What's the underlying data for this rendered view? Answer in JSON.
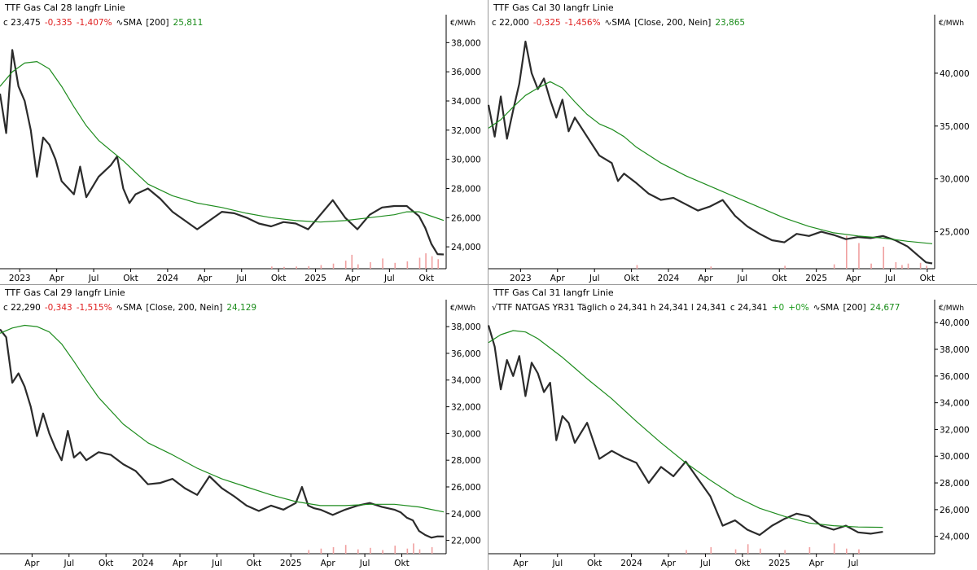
{
  "panels": [
    {
      "title": "TTF Gas Cal 28 langfr Linie",
      "legend": {
        "prefix": "",
        "close": "c 23,475",
        "change": "-0,335",
        "change_pct": "-1,407%",
        "sma_label": "SMA",
        "sma_params": "[200]",
        "sma_value": "25,811"
      },
      "unit": "€/MWh"
    },
    {
      "title": "TTF Gas Cal 30 langfr Linie",
      "legend": {
        "prefix": "",
        "close": "c 22,000",
        "change": "-0,325",
        "change_pct": "-1,456%",
        "sma_label": "SMA",
        "sma_params": "[Close, 200, Nein]",
        "sma_value": "23,865"
      },
      "unit": "€/MWh"
    },
    {
      "title": "TTF Gas Cal 29 langfr Linie",
      "legend": {
        "prefix": "",
        "close": "c 22,290",
        "change": "-0,343",
        "change_pct": "-1,515%",
        "sma_label": "SMA",
        "sma_params": "[Close, 200, Nein]",
        "sma_value": "24,129"
      },
      "unit": "€/MWh"
    },
    {
      "title": "TTF Gas Cal 31 langfr Linie",
      "legend": {
        "prefix": "TTF NATGAS YR31 Täglich o 24,341 h 24,341 l 24,341",
        "close": "c 24,341",
        "change": "+0",
        "change_pct": "+0%",
        "sma_label": "SMA",
        "sma_params": "[200]",
        "sma_value": "24,677"
      },
      "unit": "€/MWh"
    }
  ],
  "colors": {
    "price": "#2b2b2b",
    "sma": "#1e8c1e",
    "volume": "#f0a0a0",
    "negative": "#e02020",
    "positive": "#1a9a1a",
    "divider": "#9a9a9a"
  },
  "chart_data": [
    {
      "type": "line",
      "title": "TTF Gas Cal 28 langfr Linie",
      "ylabel": "€/MWh",
      "ylim": [
        22500,
        38800
      ],
      "xlim": [
        0,
        36.2
      ],
      "yticks": [
        24000,
        26000,
        28000,
        30000,
        32000,
        34000,
        36000,
        38000
      ],
      "ytick_labels": [
        "24,000",
        "26,000",
        "28,000",
        "30,000",
        "32,000",
        "34,000",
        "36,000",
        "38,000"
      ],
      "xticks": [
        {
          "label": "2023",
          "x": 1.6
        },
        {
          "label": "Apr",
          "x": 4.6
        },
        {
          "label": "Jul",
          "x": 7.6
        },
        {
          "label": "Okt",
          "x": 10.6
        },
        {
          "label": "2024",
          "x": 13.6
        },
        {
          "label": "Apr",
          "x": 16.6
        },
        {
          "label": "Jul",
          "x": 19.6
        },
        {
          "label": "Okt",
          "x": 22.6
        },
        {
          "label": "2025",
          "x": 25.6
        },
        {
          "label": "Apr",
          "x": 28.6
        },
        {
          "label": "Jul",
          "x": 31.6
        },
        {
          "label": "Okt",
          "x": 34.6
        }
      ],
      "series": [
        {
          "name": "Close",
          "x": [
            0,
            0.5,
            1,
            1.5,
            2,
            2.5,
            3,
            3.5,
            4,
            4.5,
            5,
            6,
            6.5,
            7,
            8,
            9,
            9.5,
            10,
            10.5,
            11,
            12,
            13,
            14,
            15,
            16,
            17,
            18,
            19,
            20,
            21,
            22,
            23,
            24,
            25,
            26,
            27,
            28,
            29,
            30,
            31,
            32,
            33,
            34,
            34.5,
            35,
            35.5,
            36
          ],
          "y": [
            34500,
            31800,
            37500,
            35000,
            34000,
            32000,
            28800,
            31500,
            31000,
            30000,
            28500,
            27600,
            29500,
            27400,
            28800,
            29600,
            30200,
            28000,
            27000,
            27600,
            28000,
            27300,
            26400,
            25800,
            25200,
            25800,
            26400,
            26300,
            26000,
            25600,
            25400,
            25700,
            25600,
            25200,
            26200,
            27200,
            26000,
            25200,
            26200,
            26700,
            26800,
            26800,
            26100,
            25300,
            24200,
            23500,
            23475
          ]
        },
        {
          "name": "SMA",
          "x": [
            0,
            1,
            2,
            3,
            4,
            5,
            6,
            7,
            8,
            9,
            10,
            11,
            12,
            14,
            16,
            18,
            20,
            22,
            24,
            26,
            28,
            30,
            32,
            33,
            34,
            35,
            36
          ],
          "y": [
            35000,
            36000,
            36600,
            36700,
            36200,
            35000,
            33600,
            32300,
            31300,
            30600,
            29900,
            29100,
            28300,
            27500,
            27000,
            26700,
            26300,
            26000,
            25800,
            25700,
            25800,
            26000,
            26200,
            26400,
            26400,
            26100,
            25811
          ]
        }
      ],
      "volume": {
        "x": [
          22,
          23,
          24,
          25,
          26,
          27,
          28,
          28.5,
          29,
          30,
          31,
          32,
          33,
          34,
          34.5,
          35,
          35.5
        ],
        "values": [
          6,
          5,
          6,
          7,
          10,
          14,
          22,
          38,
          12,
          18,
          28,
          16,
          20,
          30,
          42,
          34,
          26
        ]
      }
    },
    {
      "type": "line",
      "title": "TTF Gas Cal 30 langfr Linie",
      "ylabel": "€/MWh",
      "ylim": [
        21500,
        44000
      ],
      "xlim": [
        0,
        36.2
      ],
      "yticks": [
        25000,
        30000,
        35000,
        40000
      ],
      "ytick_labels": [
        "25,000",
        "30,000",
        "35,000",
        "40,000"
      ],
      "xticks": [
        {
          "label": "2023",
          "x": 2.6
        },
        {
          "label": "Apr",
          "x": 5.6
        },
        {
          "label": "Jul",
          "x": 8.6
        },
        {
          "label": "Okt",
          "x": 11.6
        },
        {
          "label": "2024",
          "x": 14.6
        },
        {
          "label": "Apr",
          "x": 17.6
        },
        {
          "label": "Jul",
          "x": 20.6
        },
        {
          "label": "Okt",
          "x": 23.6
        },
        {
          "label": "2025",
          "x": 26.6
        },
        {
          "label": "Apr",
          "x": 29.6
        },
        {
          "label": "Jul",
          "x": 32.6
        },
        {
          "label": "Okt",
          "x": 35.6
        }
      ],
      "series": [
        {
          "name": "Close",
          "x": [
            0,
            0.5,
            1,
            1.5,
            2,
            2.5,
            3,
            3.5,
            4,
            4.5,
            5,
            5.5,
            6,
            6.5,
            7,
            8,
            9,
            10,
            10.5,
            11,
            12,
            13,
            14,
            15,
            16,
            17,
            18,
            19,
            20,
            21,
            22,
            23,
            24,
            25,
            26,
            27,
            28,
            29,
            30,
            31,
            32,
            33,
            34,
            35,
            35.5,
            36
          ],
          "y": [
            37000,
            34000,
            37800,
            33800,
            36500,
            39000,
            43000,
            40000,
            38500,
            39500,
            37500,
            35800,
            37500,
            34500,
            35800,
            34000,
            32200,
            31500,
            29800,
            30500,
            29600,
            28600,
            28000,
            28200,
            27600,
            27000,
            27400,
            28000,
            26500,
            25500,
            24800,
            24200,
            24000,
            24800,
            24600,
            25000,
            24700,
            24300,
            24500,
            24400,
            24600,
            24200,
            23600,
            22600,
            22100,
            22000
          ]
        },
        {
          "name": "SMA",
          "x": [
            0,
            1,
            2,
            3,
            4,
            5,
            6,
            7,
            8,
            9,
            10,
            11,
            12,
            14,
            16,
            18,
            20,
            22,
            24,
            26,
            28,
            30,
            32,
            34,
            36
          ],
          "y": [
            34800,
            35600,
            36800,
            37900,
            38600,
            39200,
            38600,
            37300,
            36100,
            35200,
            34700,
            34000,
            33000,
            31500,
            30300,
            29300,
            28300,
            27300,
            26300,
            25500,
            24900,
            24600,
            24400,
            24100,
            23865
          ]
        }
      ],
      "volume": {
        "x": [
          12,
          18,
          24,
          28,
          29,
          30,
          31,
          32,
          33,
          33.5,
          34,
          35,
          35.5
        ],
        "values": [
          10,
          6,
          8,
          12,
          90,
          70,
          14,
          60,
          18,
          10,
          14,
          16,
          8
        ]
      }
    },
    {
      "type": "line",
      "title": "TTF Gas Cal 29 langfr Linie",
      "ylabel": "€/MWh",
      "ylim": [
        21000,
        38800
      ],
      "xlim": [
        0,
        36.2
      ],
      "yticks": [
        22000,
        24000,
        26000,
        28000,
        30000,
        32000,
        34000,
        36000,
        38000
      ],
      "ytick_labels": [
        "22,000",
        "24,000",
        "26,000",
        "28,000",
        "30,000",
        "32,000",
        "34,000",
        "36,000",
        "38,000"
      ],
      "xticks": [
        {
          "label": "Apr",
          "x": 2.6
        },
        {
          "label": "Jul",
          "x": 5.6
        },
        {
          "label": "Okt",
          "x": 8.6
        },
        {
          "label": "2024",
          "x": 11.6
        },
        {
          "label": "Apr",
          "x": 14.6
        },
        {
          "label": "Jul",
          "x": 17.6
        },
        {
          "label": "Okt",
          "x": 20.6
        },
        {
          "label": "2025",
          "x": 23.6
        },
        {
          "label": "Apr",
          "x": 26.6
        },
        {
          "label": "Jul",
          "x": 29.6
        },
        {
          "label": "Okt",
          "x": 32.6
        }
      ],
      "series": [
        {
          "name": "Close",
          "x": [
            0,
            0.5,
            1,
            1.5,
            2,
            2.5,
            3,
            3.5,
            4,
            4.5,
            5,
            5.5,
            6,
            6.5,
            7,
            8,
            9,
            10,
            11,
            12,
            13,
            14,
            15,
            16,
            17,
            18,
            19,
            20,
            21,
            22,
            23,
            24,
            24.5,
            25,
            25.5,
            26,
            27,
            28,
            29,
            30,
            31,
            32,
            32.5,
            33,
            33.5,
            34,
            34.5,
            35,
            35.5,
            36
          ],
          "y": [
            37800,
            37200,
            33800,
            34500,
            33500,
            32000,
            29800,
            31500,
            30000,
            28900,
            28000,
            30200,
            28200,
            28600,
            28000,
            28600,
            28400,
            27700,
            27200,
            26200,
            26300,
            26600,
            25900,
            25400,
            26800,
            25900,
            25300,
            24600,
            24200,
            24600,
            24300,
            24800,
            26000,
            24600,
            24400,
            24300,
            23900,
            24300,
            24600,
            24800,
            24500,
            24300,
            24100,
            23700,
            23500,
            22700,
            22400,
            22200,
            22300,
            22290
          ]
        },
        {
          "name": "SMA",
          "x": [
            0,
            1,
            2,
            3,
            4,
            5,
            6,
            7,
            8,
            10,
            12,
            14,
            16,
            18,
            20,
            22,
            24,
            26,
            28,
            30,
            32,
            34,
            36
          ],
          "y": [
            37500,
            37900,
            38100,
            38000,
            37600,
            36700,
            35400,
            34000,
            32700,
            30700,
            29300,
            28400,
            27400,
            26600,
            26000,
            25400,
            24900,
            24600,
            24600,
            24700,
            24700,
            24500,
            24129
          ]
        }
      ],
      "volume": {
        "x": [
          25,
          26,
          27,
          28,
          29,
          30,
          31,
          32,
          33,
          33.5,
          34,
          35
        ],
        "values": [
          10,
          14,
          18,
          24,
          12,
          16,
          10,
          22,
          14,
          28,
          12,
          18
        ]
      }
    },
    {
      "type": "line",
      "title": "TTF Gas Cal 31 langfr Linie",
      "ylabel": "€/MWh",
      "ylim": [
        22700,
        40500
      ],
      "xlim": [
        0,
        36.2
      ],
      "yticks": [
        24000,
        26000,
        28000,
        30000,
        32000,
        34000,
        36000,
        38000,
        40000
      ],
      "ytick_labels": [
        "24,000",
        "26,000",
        "28,000",
        "30,000",
        "32,000",
        "34,000",
        "36,000",
        "38,000",
        "40,000"
      ],
      "xticks": [
        {
          "label": "Apr",
          "x": 2.6
        },
        {
          "label": "Jul",
          "x": 5.6
        },
        {
          "label": "Okt",
          "x": 8.6
        },
        {
          "label": "2024",
          "x": 11.6
        },
        {
          "label": "Apr",
          "x": 14.6
        },
        {
          "label": "Jul",
          "x": 17.6
        },
        {
          "label": "Okt",
          "x": 20.6
        },
        {
          "label": "2025",
          "x": 23.6
        },
        {
          "label": "Apr",
          "x": 26.6
        },
        {
          "label": "Jul",
          "x": 29.6
        }
      ],
      "series": [
        {
          "name": "Close",
          "x": [
            0,
            0.5,
            1,
            1.5,
            2,
            2.5,
            3,
            3.5,
            4,
            4.5,
            5,
            5.5,
            6,
            6.5,
            7,
            8,
            9,
            10,
            11,
            12,
            13,
            14,
            15,
            16,
            17,
            18,
            19,
            20,
            21,
            22,
            23,
            24,
            25,
            26,
            27,
            28,
            29,
            30,
            31,
            32
          ],
          "y": [
            39800,
            38200,
            35000,
            37200,
            36000,
            37500,
            34500,
            37000,
            36200,
            34800,
            35500,
            31200,
            33000,
            32500,
            31000,
            32500,
            29800,
            30400,
            29900,
            29500,
            28000,
            29200,
            28500,
            29600,
            28300,
            27000,
            24800,
            25200,
            24500,
            24100,
            24800,
            25300,
            25700,
            25500,
            24800,
            24500,
            24800,
            24300,
            24200,
            24341
          ]
        },
        {
          "name": "SMA",
          "x": [
            0,
            1,
            2,
            3,
            4,
            5,
            6,
            7,
            8,
            10,
            12,
            14,
            16,
            18,
            20,
            22,
            24,
            26,
            28,
            30,
            32
          ],
          "y": [
            38500,
            39100,
            39400,
            39300,
            38800,
            38100,
            37400,
            36600,
            35800,
            34300,
            32600,
            31000,
            29500,
            28200,
            27000,
            26100,
            25500,
            25000,
            24800,
            24700,
            24677
          ]
        }
      ],
      "volume": {
        "x": [
          16,
          18,
          20,
          21,
          22,
          24,
          26,
          28,
          29,
          30
        ],
        "values": [
          10,
          18,
          12,
          26,
          14,
          10,
          18,
          28,
          14,
          12
        ]
      }
    }
  ]
}
